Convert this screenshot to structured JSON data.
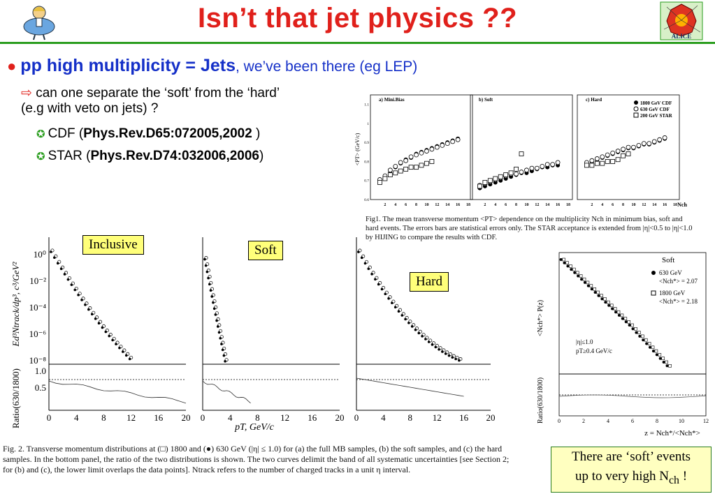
{
  "slide": {
    "title": "Isn’t that jet physics ??",
    "bullet_bold": "pp high multiplicity = Jets",
    "bullet_rest": ", we’ve been there (eg LEP)",
    "sub_line1": "can one separate the ‘soft’ from the ‘hard’",
    "sub_line2": "(e.g with veto on jets) ?",
    "ref1_prefix": "CDF (",
    "ref1_bold": "Phys.Rev.D65:072005,2002",
    "ref1_suffix": " )",
    "ref2_prefix": "STAR (",
    "ref2_bold": "Phys.Rev.D74:032006,2006",
    "ref2_suffix": ")",
    "box_inclusive": "Inclusive",
    "box_soft": "Soft",
    "box_hard": "Hard",
    "note_line1": "There are ‘soft’ events",
    "note_line2_pre": "up to very high N",
    "note_line2_sub": "ch",
    "note_line2_post": " !"
  },
  "fig1": {
    "panel_titles": [
      "a) Mini.Bias",
      "b) Soft",
      "c) Hard"
    ],
    "ylabel": "<PT> (GeV/c)",
    "xlabel": "Nch",
    "yticks": [
      "0.6",
      "0.7",
      "0.8",
      "0.9",
      "1",
      "1.1"
    ],
    "xticks": [
      "2",
      "4",
      "6",
      "8",
      "10",
      "12",
      "14",
      "16",
      "18"
    ],
    "legend": [
      "1800 GeV CDF",
      "630 GeV CDF",
      "200 GeV STAR"
    ],
    "caption": "Fig1. The mean transverse momentum <PT> dependence on the multiplicity Nch in minimum bias, soft and hard events. The errors bars are statistical errors only. The STAR acceptance is extended from |η|<0.5 to |η|<1.0 by HIJING to compare the results with CDF."
  },
  "fig2": {
    "ylabel_top": "Ed³Ntrack/dp³, c³/GeV²",
    "ylabel_bottom": "Ratio(630/1800)",
    "xlabel": "pT, GeV/c",
    "yticks_top": [
      "10⁰",
      "10⁻²",
      "10⁻⁴",
      "10⁻⁶",
      "10⁻⁸"
    ],
    "yticks_bottom": [
      "1.0",
      "0.5"
    ],
    "xticks": [
      "0",
      "4",
      "8",
      "12",
      "16",
      "20"
    ],
    "caption_html": "Fig. 2. Transverse momentum distributions at (□) 1800 and (●) 630 GeV (|η| ≤ 1.0) for (a) the full MB samples, (b) the soft samples, and (c) the hard samples. In the bottom panel, the ratio of the two distributions is shown. The two curves delimit the band of all systematic uncertainties [see Section 2; for (b) and (c), the lower limit overlaps the data points]. Ntrack refers to the number of charged tracks in a unit η interval."
  },
  "fig3": {
    "title": "Soft",
    "legend": [
      "630 GeV",
      "<Nch*> = 2.07",
      "1800 GeV",
      "<Nch*> = 2.18"
    ],
    "cuts": [
      "|η|≤1.0",
      "pT≥0.4 GeV/c"
    ],
    "ylabel_top": "<Nch*> P(z)",
    "ylabel_bottom": "Ratio(630/1800)",
    "xlabel": "z = Nch*/<Nch*>",
    "xticks": [
      "0",
      "2",
      "4",
      "6",
      "8",
      "10",
      "12"
    ]
  },
  "chart_data": [
    {
      "type": "scatter",
      "title": "a) Mini.Bias",
      "ylabel": "<PT> (GeV/c)",
      "x": [
        1,
        2,
        3,
        4,
        5,
        6,
        7,
        8,
        9,
        10,
        11,
        12,
        13,
        14,
        15,
        16
      ],
      "series": [
        {
          "name": "1800 GeV CDF",
          "values": [
            0.7,
            0.72,
            0.75,
            0.77,
            0.79,
            0.81,
            0.82,
            0.84,
            0.85,
            0.86,
            0.87,
            0.88,
            0.89,
            0.9,
            0.91,
            0.92
          ]
        },
        {
          "name": "630 GeV CDF",
          "values": [
            0.69,
            0.71,
            0.74,
            0.76,
            0.78,
            0.79,
            0.81,
            0.82,
            0.83,
            0.84,
            0.85,
            0.86,
            0.87,
            0.88,
            0.89,
            0.9
          ]
        },
        {
          "name": "200 GeV STAR",
          "values": [
            0.69,
            0.71,
            0.73,
            0.74,
            0.75,
            0.76,
            0.77,
            0.77,
            0.78,
            0.79,
            0.8
          ]
        }
      ],
      "ylim": [
        0.6,
        1.15
      ]
    },
    {
      "type": "scatter",
      "title": "b) Soft",
      "x": [
        1,
        2,
        3,
        4,
        5,
        6,
        7,
        8,
        9,
        10,
        11,
        12,
        13,
        14,
        15,
        16
      ],
      "series": [
        {
          "name": "1800 GeV CDF",
          "values": [
            0.66,
            0.67,
            0.68,
            0.69,
            0.7,
            0.71,
            0.72,
            0.73,
            0.74,
            0.74,
            0.75,
            0.76,
            0.77,
            0.77,
            0.78,
            0.78
          ]
        },
        {
          "name": "630 GeV CDF",
          "values": [
            0.66,
            0.67,
            0.68,
            0.69,
            0.7,
            0.71,
            0.72,
            0.72,
            0.73,
            0.74,
            0.75,
            0.75,
            0.76,
            0.77,
            0.77,
            0.78
          ]
        },
        {
          "name": "200 GeV STAR",
          "values": [
            0.67,
            0.69,
            0.7,
            0.71,
            0.72,
            0.73,
            0.74,
            0.76,
            0.84
          ]
        }
      ],
      "ylim": [
        0.6,
        1.15
      ]
    },
    {
      "type": "scatter",
      "title": "c) Hard",
      "x": [
        1,
        2,
        3,
        4,
        5,
        6,
        7,
        8,
        9,
        10,
        11,
        12,
        13,
        14,
        15,
        16
      ],
      "series": [
        {
          "name": "1800 GeV CDF",
          "values": [
            0.79,
            0.8,
            0.81,
            0.82,
            0.83,
            0.84,
            0.85,
            0.86,
            0.87,
            0.87,
            0.88,
            0.89,
            0.89,
            0.9,
            0.91,
            0.92
          ]
        },
        {
          "name": "630 GeV CDF",
          "values": [
            0.78,
            0.79,
            0.8,
            0.81,
            0.82,
            0.83,
            0.84,
            0.85,
            0.86,
            0.86,
            0.87,
            0.88,
            0.88,
            0.89,
            0.9,
            0.91
          ]
        },
        {
          "name": "200 GeV STAR",
          "values": [
            0.78,
            0.78,
            0.79,
            0.79,
            0.8,
            0.8,
            0.81,
            0.83,
            0.84
          ]
        }
      ],
      "ylim": [
        0.6,
        1.15
      ]
    }
  ]
}
